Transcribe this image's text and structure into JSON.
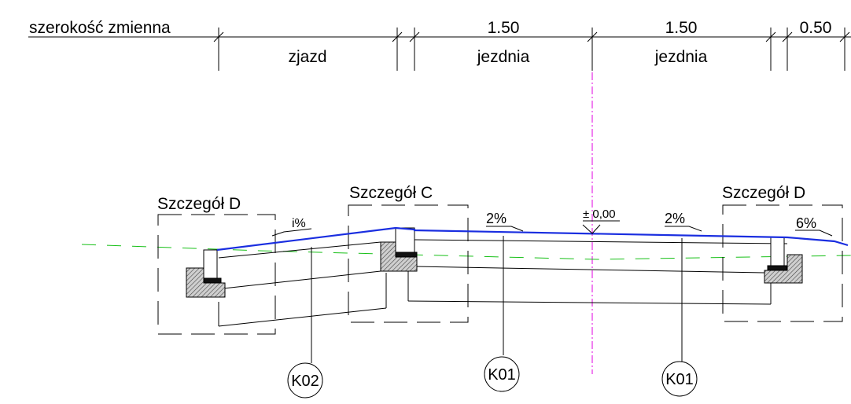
{
  "dimensions": {
    "left_label": "szerokość zmienna",
    "segments": [
      {
        "value": "",
        "label": "zjazd"
      },
      {
        "value": "1.50",
        "label": "jezdnia"
      },
      {
        "value": "1.50",
        "label": "jezdnia"
      },
      {
        "value": "0.50",
        "label": ""
      }
    ]
  },
  "details": {
    "detail_d_left": "Szczegół D",
    "detail_c": "Szczegół C",
    "detail_d_right": "Szczegół D"
  },
  "slopes": {
    "left": "i%",
    "center_left": "2%",
    "center_right": "2%",
    "right": "6%"
  },
  "elevation": "± 0,00",
  "markers": {
    "left": "K02",
    "center": "K01",
    "right": "K01"
  },
  "colors": {
    "surface": "#1a2ee0",
    "axis": "#e000e0",
    "ground": "#18c018",
    "line": "#000000",
    "hatch": "#555555"
  }
}
